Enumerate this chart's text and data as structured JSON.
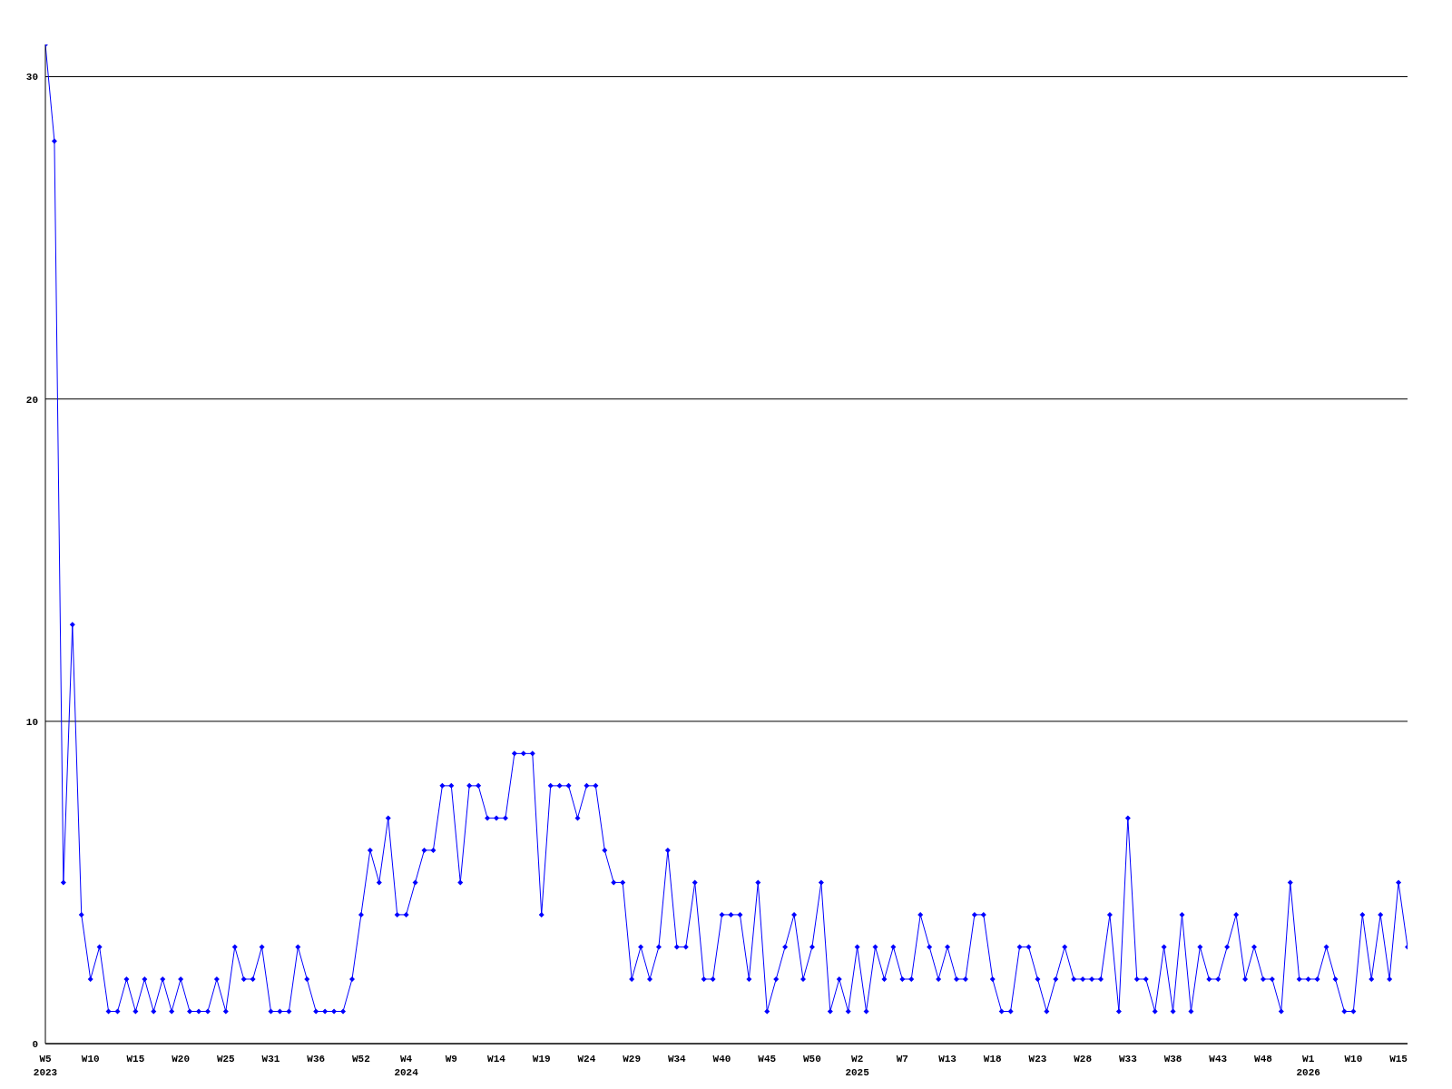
{
  "chart_data": {
    "type": "line",
    "categories": [
      "W5\n2023",
      null,
      null,
      null,
      null,
      "W10",
      null,
      null,
      null,
      null,
      "W15",
      null,
      null,
      null,
      null,
      "W20",
      null,
      null,
      null,
      null,
      "W25",
      null,
      null,
      null,
      null,
      "W31",
      null,
      null,
      null,
      null,
      "W36",
      null,
      null,
      null,
      null,
      "W52",
      null,
      null,
      null,
      null,
      "W4\n2024",
      null,
      null,
      null,
      null,
      "W9",
      null,
      null,
      null,
      null,
      "W14",
      null,
      null,
      null,
      null,
      "W19",
      null,
      null,
      null,
      null,
      "W24",
      null,
      null,
      null,
      null,
      "W29",
      null,
      null,
      null,
      null,
      "W34",
      null,
      null,
      null,
      null,
      "W40",
      null,
      null,
      null,
      null,
      "W45",
      null,
      null,
      null,
      null,
      "W50",
      null,
      null,
      null,
      null,
      "W2\n2025",
      null,
      null,
      null,
      null,
      "W7",
      null,
      null,
      null,
      null,
      "W13",
      null,
      null,
      null,
      null,
      "W18",
      null,
      null,
      null,
      null,
      "W23",
      null,
      null,
      null,
      null,
      "W28",
      null,
      null,
      null,
      null,
      "W33",
      null,
      null,
      null,
      null,
      "W38",
      null,
      null,
      null,
      null,
      "W43",
      null,
      null,
      null,
      null,
      "W48",
      null,
      null,
      null,
      null,
      "W1\n2026",
      null,
      null,
      null,
      null,
      "W10",
      null,
      null,
      null,
      null,
      "W15",
      null
    ],
    "series": [
      {
        "color": "#0000ff",
        "values": [
          31,
          28,
          5,
          13,
          4,
          2,
          3,
          1,
          1,
          2,
          1,
          2,
          1,
          2,
          1,
          2,
          1,
          1,
          1,
          2,
          1,
          3,
          2,
          2,
          3,
          1,
          1,
          1,
          3,
          2,
          1,
          1,
          1,
          1,
          2,
          4,
          6,
          5,
          7,
          4,
          4,
          5,
          6,
          6,
          8,
          8,
          5,
          8,
          8,
          7,
          7,
          7,
          9,
          9,
          9,
          4,
          8,
          8,
          8,
          7,
          8,
          8,
          6,
          5,
          5,
          2,
          3,
          2,
          3,
          6,
          3,
          3,
          5,
          2,
          2,
          4,
          4,
          4,
          2,
          5,
          1,
          2,
          3,
          4,
          2,
          3,
          5,
          1,
          2,
          1,
          3,
          1,
          3,
          2,
          3,
          2,
          2,
          4,
          3,
          2,
          3,
          2,
          2,
          4,
          4,
          2,
          1,
          1,
          3,
          3,
          2,
          1,
          2,
          3,
          2,
          2,
          2,
          2,
          4,
          1,
          7,
          2,
          2,
          1,
          3,
          1,
          4,
          1,
          3,
          2,
          2,
          3,
          4,
          2,
          3,
          2,
          2,
          1,
          5,
          2,
          2,
          2,
          3,
          2,
          1,
          1,
          4,
          2,
          4,
          2,
          5,
          3
        ]
      }
    ],
    "ylim": [
      0,
      31
    ],
    "yticks": [
      0,
      10,
      20,
      30
    ],
    "grid": "y",
    "marker": "diamond",
    "line_style": "solid"
  }
}
